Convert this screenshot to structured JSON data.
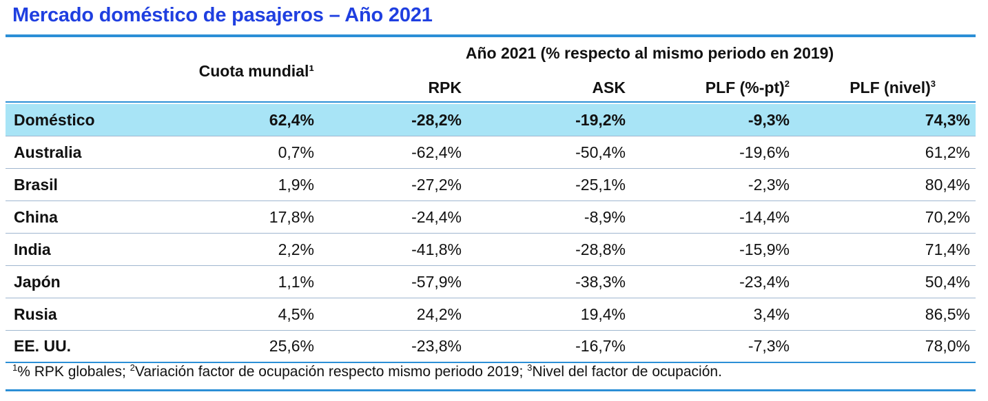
{
  "title": "Mercado doméstico de pasajeros – Año 2021",
  "header": {
    "group_label": "Año 2021 (% respecto al mismo periodo en 2019)",
    "share_label": "Cuota mundial¹",
    "col_rpk": "RPK",
    "col_ask": "ASK",
    "col_plf_pt": "PLF (%-pt)",
    "col_plf_pt_sup": "2",
    "col_plf_level": "PLF (nivel)",
    "col_plf_level_sup": "3"
  },
  "rows": [
    {
      "name": "Doméstico",
      "share": "62,4%",
      "rpk": "-28,2%",
      "ask": "-19,2%",
      "plf_pt": "-9,3%",
      "plf_level": "74,3%"
    },
    {
      "name": "Australia",
      "share": "0,7%",
      "rpk": "-62,4%",
      "ask": "-50,4%",
      "plf_pt": "-19,6%",
      "plf_level": "61,2%"
    },
    {
      "name": "Brasil",
      "share": "1,9%",
      "rpk": "-27,2%",
      "ask": "-25,1%",
      "plf_pt": "-2,3%",
      "plf_level": "80,4%"
    },
    {
      "name": "China",
      "share": "17,8%",
      "rpk": "-24,4%",
      "ask": "-8,9%",
      "plf_pt": "-14,4%",
      "plf_level": "70,2%"
    },
    {
      "name": "India",
      "share": "2,2%",
      "rpk": "-41,8%",
      "ask": "-28,8%",
      "plf_pt": "-15,9%",
      "plf_level": "71,4%"
    },
    {
      "name": "Japón",
      "share": "1,1%",
      "rpk": "-57,9%",
      "ask": "-38,3%",
      "plf_pt": "-23,4%",
      "plf_level": "50,4%"
    },
    {
      "name": "Rusia",
      "share": "4,5%",
      "rpk": "24,2%",
      "ask": "19,4%",
      "plf_pt": "3,4%",
      "plf_level": "86,5%"
    },
    {
      "name": "EE. UU.",
      "share": "25,6%",
      "rpk": "-23,8%",
      "ask": "-16,7%",
      "plf_pt": "-7,3%",
      "plf_level": "78,0%"
    }
  ],
  "footnote": {
    "sup1": "1",
    "text1": "% RPK globales; ",
    "sup2": "2",
    "text2": "Variación factor de ocupación respecto mismo periodo 2019; ",
    "sup3": "3",
    "text3": "Nivel del factor de ocupación."
  },
  "colors": {
    "title": "#1f3fe0",
    "rule": "#2b8fd6",
    "highlight_row": "#a8e4f6"
  }
}
